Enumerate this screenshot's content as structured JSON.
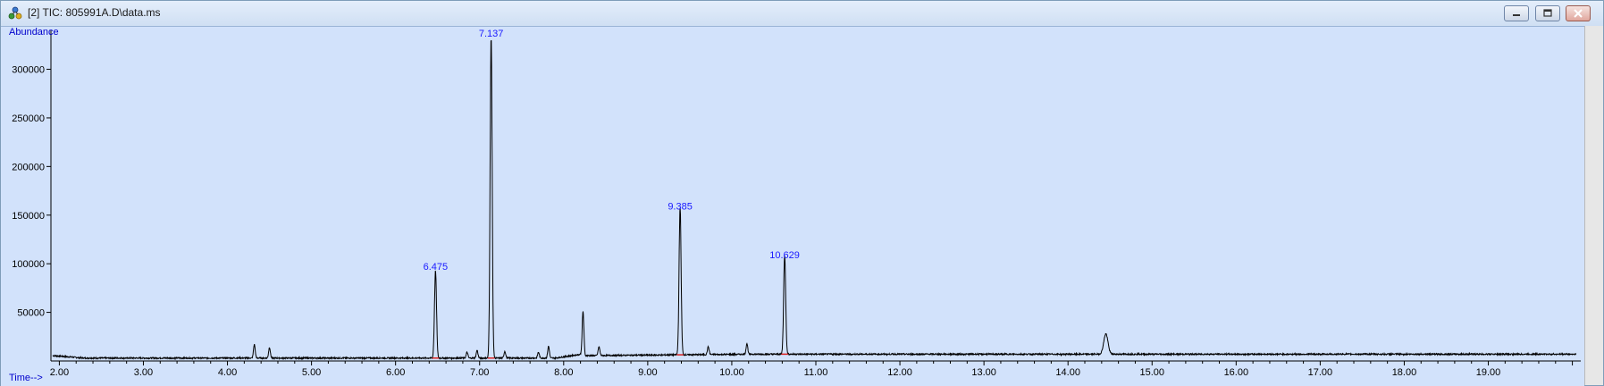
{
  "window": {
    "title": "[2] TIC: 805991A.D\\data.ms",
    "controls": [
      "minimize",
      "restore",
      "close"
    ]
  },
  "colors": {
    "plot_bg": "#d2e2fb",
    "axis_label": "#0000cc",
    "peak_label": "#1a1aff",
    "trace": "#000000",
    "baseline_marker": "#d92020"
  },
  "icons": {
    "app": "molecule-icon",
    "minimize": "minimize-icon",
    "restore": "restore-icon",
    "close": "close-icon"
  },
  "chart_data": {
    "type": "line",
    "ylabel": "Abundance",
    "xlabel": "Time-->",
    "xlim": [
      1.9,
      20.1
    ],
    "ylim": [
      0,
      340000
    ],
    "x_ticks": [
      "2.00",
      "3.00",
      "4.00",
      "5.00",
      "6.00",
      "7.00",
      "8.00",
      "9.00",
      "10.00",
      "11.00",
      "12.00",
      "13.00",
      "14.00",
      "15.00",
      "16.00",
      "17.00",
      "18.00",
      "19.00"
    ],
    "x_tick_values": [
      2,
      3,
      4,
      5,
      6,
      7,
      8,
      9,
      10,
      11,
      12,
      13,
      14,
      15,
      16,
      17,
      18,
      19
    ],
    "y_ticks": [
      "50000",
      "100000",
      "150000",
      "200000",
      "250000",
      "300000"
    ],
    "y_tick_values": [
      50000,
      100000,
      150000,
      200000,
      250000,
      300000
    ],
    "grid": false,
    "peaks": [
      {
        "label": "6.475",
        "rt": 6.475,
        "height": 90000
      },
      {
        "label": "7.137",
        "rt": 7.137,
        "height": 330000
      },
      {
        "label": "9.385",
        "rt": 9.385,
        "height": 152000
      },
      {
        "label": "10.629",
        "rt": 10.629,
        "height": 102000
      }
    ],
    "minor_peaks": [
      {
        "rt": 4.32,
        "height": 14000
      },
      {
        "rt": 4.5,
        "height": 11000
      },
      {
        "rt": 6.85,
        "height": 6000
      },
      {
        "rt": 6.97,
        "height": 8000
      },
      {
        "rt": 7.3,
        "height": 7000
      },
      {
        "rt": 7.7,
        "height": 6000
      },
      {
        "rt": 7.82,
        "height": 12000
      },
      {
        "rt": 8.23,
        "height": 44000
      },
      {
        "rt": 8.42,
        "height": 9000
      },
      {
        "rt": 9.72,
        "height": 8000
      },
      {
        "rt": 10.18,
        "height": 11000
      },
      {
        "rt": 14.45,
        "height": 21000
      }
    ]
  }
}
